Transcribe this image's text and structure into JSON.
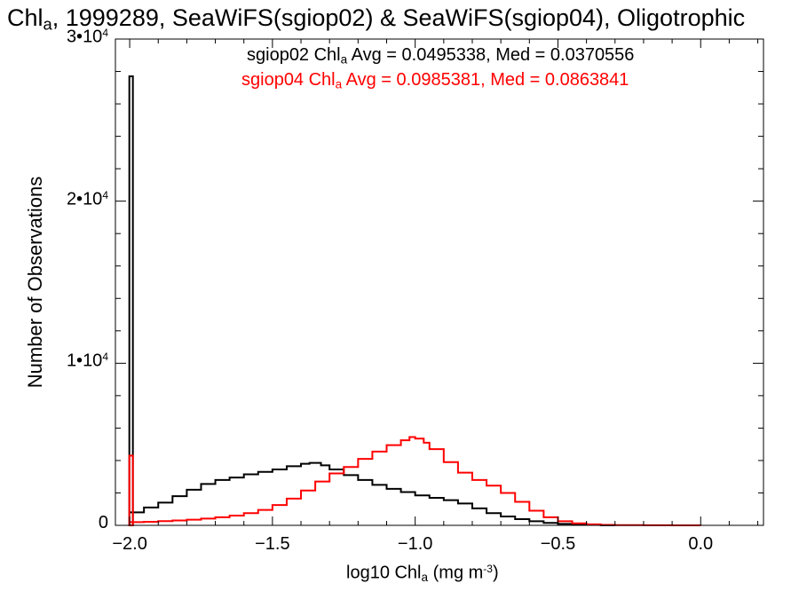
{
  "title": {
    "prefix": "Chl",
    "sub": "a",
    "rest": ", 1999289, SeaWiFS(sgiop02) & SeaWiFS(sgiop04), Oligotrophic"
  },
  "annotations": [
    {
      "pre": "sgiop02 Chl",
      "sub": "a",
      "post": " Avg = 0.0495338, Med = 0.0370556",
      "color": "#000000"
    },
    {
      "pre": "sgiop04 Chl",
      "sub": "a",
      "post": " Avg = 0.0985381, Med = 0.0863841",
      "color": "#ff0000"
    }
  ],
  "chart_data": {
    "type": "histogram",
    "xlabel": {
      "pre": "log10 Chl",
      "sub": "a",
      "mid": " (mg m",
      "sup": "-3",
      "post": ")"
    },
    "ylabel": "Number of Observations",
    "xlim": [
      -2.05,
      0.22
    ],
    "ylim": [
      0,
      30000
    ],
    "xticks": [
      {
        "v": -2.0,
        "label": "−2.0"
      },
      {
        "v": -1.5,
        "label": "−1.5"
      },
      {
        "v": -1.0,
        "label": "−1.0"
      },
      {
        "v": -0.5,
        "label": "−0.5"
      },
      {
        "v": 0.0,
        "label": "0.0"
      }
    ],
    "yticks": [
      {
        "v": 0,
        "mant": "0",
        "exp": ""
      },
      {
        "v": 10000,
        "mant": "1•10",
        "exp": "4"
      },
      {
        "v": 20000,
        "mant": "2•10",
        "exp": "4"
      },
      {
        "v": 30000,
        "mant": "3•10",
        "exp": "4"
      }
    ],
    "series": [
      {
        "name": "sgiop02",
        "color": "#000000",
        "spike": {
          "x": -1.995,
          "y": 27700
        },
        "x": [
          -2.0,
          -1.95,
          -1.9,
          -1.85,
          -1.8,
          -1.75,
          -1.7,
          -1.65,
          -1.6,
          -1.55,
          -1.5,
          -1.45,
          -1.4,
          -1.37,
          -1.33,
          -1.3,
          -1.25,
          -1.2,
          -1.15,
          -1.1,
          -1.05,
          -1.0,
          -0.95,
          -0.9,
          -0.85,
          -0.8,
          -0.75,
          -0.7,
          -0.65,
          -0.6,
          -0.55,
          -0.5,
          -0.45,
          -0.4,
          -0.35,
          -0.3
        ],
        "y": [
          800,
          1100,
          1400,
          1800,
          2200,
          2550,
          2800,
          2950,
          3150,
          3300,
          3450,
          3650,
          3800,
          3850,
          3700,
          3450,
          3100,
          2800,
          2500,
          2250,
          2050,
          1850,
          1700,
          1550,
          1350,
          1050,
          750,
          550,
          380,
          250,
          150,
          90,
          50,
          25,
          10,
          0
        ]
      },
      {
        "name": "sgiop04",
        "color": "#ff0000",
        "spike": {
          "x": -1.995,
          "y": 4300
        },
        "x": [
          -2.0,
          -1.95,
          -1.9,
          -1.85,
          -1.8,
          -1.75,
          -1.7,
          -1.65,
          -1.6,
          -1.55,
          -1.5,
          -1.45,
          -1.4,
          -1.35,
          -1.3,
          -1.25,
          -1.2,
          -1.15,
          -1.1,
          -1.05,
          -1.02,
          -1.0,
          -0.97,
          -0.95,
          -0.9,
          -0.85,
          -0.8,
          -0.75,
          -0.7,
          -0.65,
          -0.6,
          -0.55,
          -0.5,
          -0.45,
          -0.4,
          -0.35,
          -0.3,
          -0.2,
          -0.1,
          0.0
        ],
        "y": [
          200,
          220,
          260,
          300,
          350,
          420,
          500,
          600,
          750,
          950,
          1250,
          1650,
          2150,
          2700,
          3200,
          3600,
          4100,
          4550,
          4950,
          5250,
          5450,
          5350,
          5100,
          4700,
          3900,
          3250,
          2800,
          2450,
          2000,
          1450,
          900,
          500,
          250,
          120,
          60,
          30,
          15,
          5,
          2,
          0
        ]
      }
    ]
  }
}
